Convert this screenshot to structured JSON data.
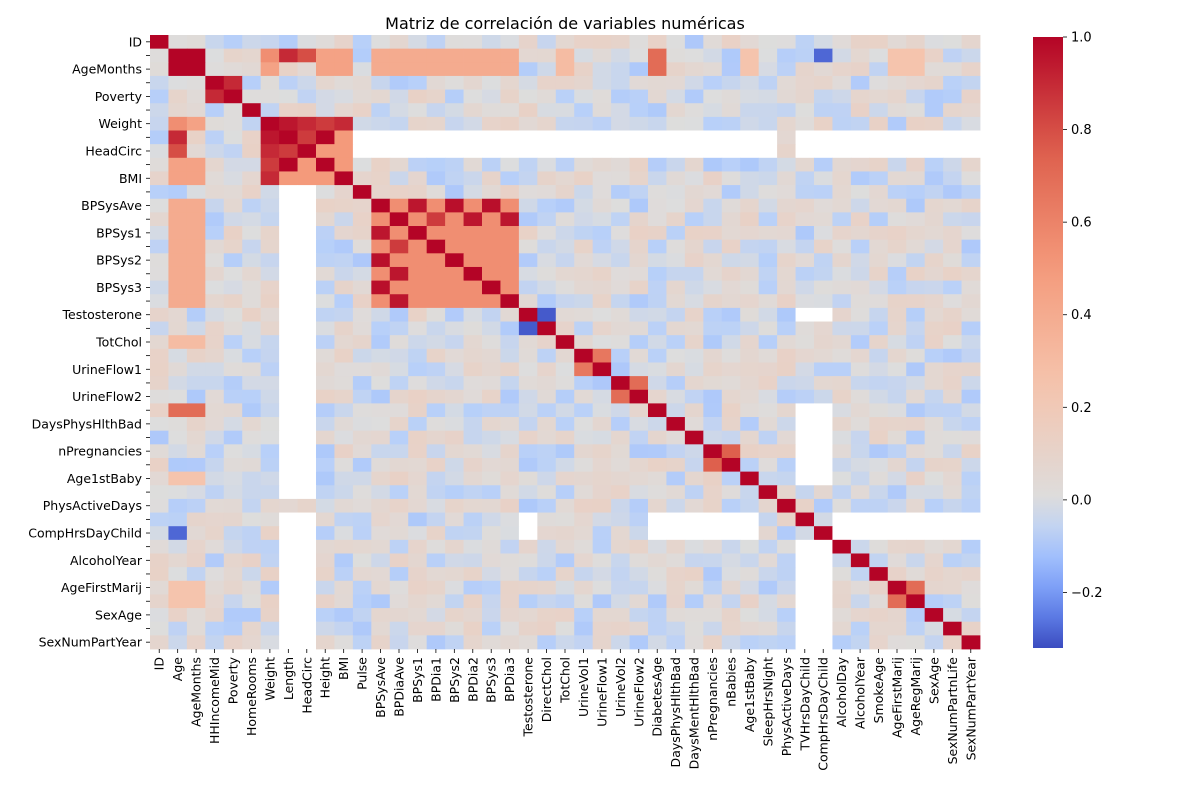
{
  "chart_data": {
    "type": "heatmap",
    "title": "Matriz de correlación de variables numéricas",
    "colormap": "coolwarm",
    "colorbar": {
      "range": [
        -0.32,
        1.0
      ],
      "ticks": [
        1.0,
        0.8,
        0.6,
        0.4,
        0.2,
        0.0,
        -0.2
      ],
      "tick_labels": [
        "1.0",
        "0.8",
        "0.6",
        "0.4",
        "0.2",
        "0.0",
        "−0.2"
      ],
      "placement": "right"
    },
    "x_labels": [
      "ID",
      "Age",
      "AgeMonths",
      "HHIncomeMid",
      "Poverty",
      "HomeRooms",
      "Weight",
      "Length",
      "HeadCirc",
      "Height",
      "BMI",
      "Pulse",
      "BPSysAve",
      "BPDiaAve",
      "BPSys1",
      "BPDia1",
      "BPSys2",
      "BPDia2",
      "BPSys3",
      "BPDia3",
      "Testosterone",
      "DirectChol",
      "TotChol",
      "UrineVol1",
      "UrineFlow1",
      "UrineVol2",
      "UrineFlow2",
      "DiabetesAge",
      "DaysPhysHlthBad",
      "DaysMentHlthBad",
      "nPregnancies",
      "nBabies",
      "Age1stBaby",
      "SleepHrsNight",
      "PhysActiveDays",
      "TVHrsDayChild",
      "CompHrsDayChild",
      "AlcoholDay",
      "AlcoholYear",
      "SmokeAge",
      "AgeFirstMarij",
      "AgeRegMarij",
      "SexAge",
      "SexNumPartnLife",
      "SexNumPartYear"
    ],
    "y_labels": [
      "ID",
      "",
      "AgeMonths",
      "",
      "Poverty",
      "",
      "Weight",
      "",
      "HeadCirc",
      "",
      "BMI",
      "",
      "BPSysAve",
      "",
      "BPSys1",
      "",
      "BPSys2",
      "",
      "BPSys3",
      "",
      "Testosterone",
      "",
      "TotChol",
      "",
      "UrineFlow1",
      "",
      "UrineFlow2",
      "",
      "DaysPhysHlthBad",
      "",
      "nPregnancies",
      "",
      "Age1stBaby",
      "",
      "PhysActiveDays",
      "",
      "CompHrsDayChild",
      "",
      "AlcoholYear",
      "",
      "AgeFirstMarij",
      "",
      "SexAge",
      "",
      "SexNumPartYear"
    ],
    "grid": false,
    "cell_values": {
      "diagonal": 1.0,
      "missing_value_cells": "white (NaN)",
      "strong_pairs": [
        {
          "a": "Age",
          "b": "AgeMonths",
          "r": 1.0
        },
        {
          "a": "Age",
          "b": "Length",
          "r": 0.9
        },
        {
          "a": "Age",
          "b": "HeadCirc",
          "r": 0.8
        },
        {
          "a": "Age",
          "b": "Weight",
          "r": 0.55
        },
        {
          "a": "Age",
          "b": "DiabetesAge",
          "r": 0.7
        },
        {
          "a": "HHIncomeMid",
          "b": "Poverty",
          "r": 0.9
        },
        {
          "a": "Weight",
          "b": "Length",
          "r": 0.95
        },
        {
          "a": "Weight",
          "b": "HeadCirc",
          "r": 0.9
        },
        {
          "a": "Weight",
          "b": "Height",
          "r": 0.85
        },
        {
          "a": "Weight",
          "b": "BMI",
          "r": 0.9
        },
        {
          "a": "Length",
          "b": "HeadCirc",
          "r": 0.85
        },
        {
          "a": "Length",
          "b": "Height",
          "r": 1.0
        },
        {
          "a": "BPSysAve",
          "b": "BPSys1",
          "r": 0.95
        },
        {
          "a": "BPSysAve",
          "b": "BPSys2",
          "r": 0.97
        },
        {
          "a": "BPSysAve",
          "b": "BPSys3",
          "r": 0.97
        },
        {
          "a": "BPDiaAve",
          "b": "BPDia1",
          "r": 0.85
        },
        {
          "a": "BPDiaAve",
          "b": "BPDia2",
          "r": 0.95
        },
        {
          "a": "BPDiaAve",
          "b": "BPDia3",
          "r": 0.95
        },
        {
          "a": "DirectChol",
          "b": "Testosterone",
          "r": -0.3
        },
        {
          "a": "UrineVol1",
          "b": "UrineFlow1",
          "r": 0.65
        },
        {
          "a": "UrineVol2",
          "b": "UrineFlow2",
          "r": 0.7
        },
        {
          "a": "nPregnancies",
          "b": "nBabies",
          "r": 0.75
        },
        {
          "a": "AgeFirstMarij",
          "b": "AgeRegMarij",
          "r": 0.7
        },
        {
          "a": "Age",
          "b": "CompHrsDayChild",
          "r": -0.28
        }
      ]
    }
  }
}
